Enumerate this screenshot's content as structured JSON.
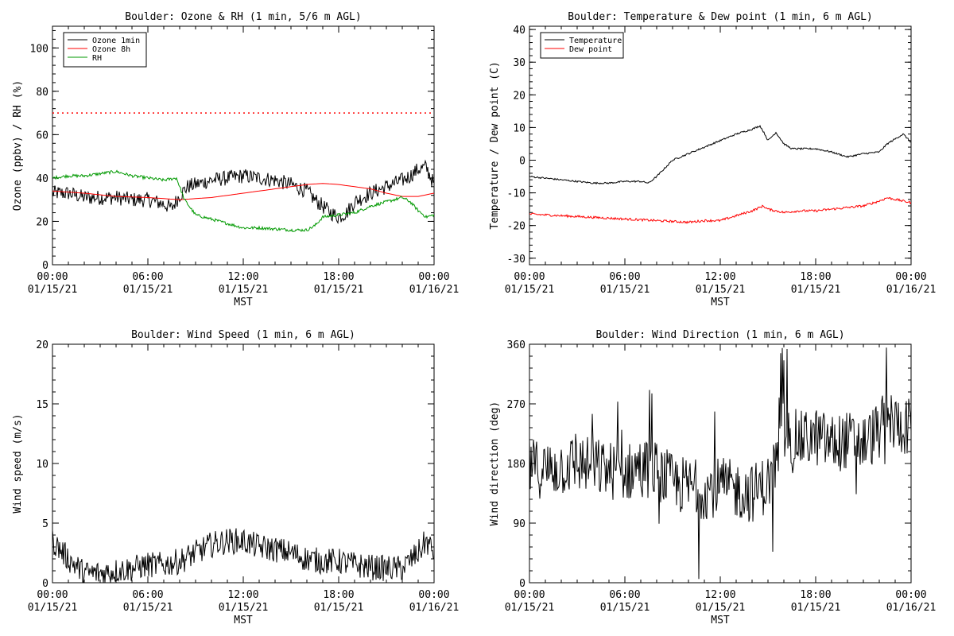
{
  "chart_data": [
    {
      "type": "line",
      "title": "Boulder: Ozone & RH (1 min, 5/6 m AGL)",
      "xlabel": "MST",
      "ylabel": "Ozone (ppbv) / RH (%)",
      "xlim_hours": [
        0,
        24
      ],
      "ylim": [
        0,
        110
      ],
      "yticks": [
        0,
        20,
        40,
        60,
        80,
        100
      ],
      "xticks": [
        {
          "h": 0,
          "time": "00:00",
          "date": "01/15/21"
        },
        {
          "h": 6,
          "time": "06:00",
          "date": "01/15/21"
        },
        {
          "h": 12,
          "time": "12:00",
          "date": "01/15/21"
        },
        {
          "h": 18,
          "time": "18:00",
          "date": "01/15/21"
        },
        {
          "h": 24,
          "time": "00:00",
          "date": "01/16/21"
        }
      ],
      "legend_position": "top-left",
      "reference_line": {
        "y": 70,
        "color": "#ff0000",
        "style": "dotted"
      },
      "series": [
        {
          "name": "Ozone 1min",
          "color": "#000000",
          "noise": 3.5,
          "x": [
            0,
            1,
            2,
            3,
            4,
            5,
            6,
            7,
            7.5,
            8,
            8.5,
            9,
            10,
            11,
            12,
            13,
            14,
            15,
            16,
            16.5,
            17,
            17.5,
            18,
            18.5,
            19,
            20,
            21,
            22,
            22.5,
            23,
            23.5,
            24
          ],
          "y": [
            33,
            33,
            31,
            31,
            31,
            30,
            30,
            28,
            26,
            32,
            36,
            37,
            39,
            40,
            41,
            40,
            39,
            37,
            34,
            30,
            27,
            24,
            22,
            24,
            29,
            33,
            36,
            39,
            41,
            44,
            45,
            37
          ]
        },
        {
          "name": "Ozone 8h",
          "color": "#ff0000",
          "noise": 0,
          "x": [
            0,
            2,
            4,
            6,
            8,
            10,
            12,
            14,
            16,
            17,
            18,
            19,
            20,
            21,
            22,
            23,
            24
          ],
          "y": [
            34,
            33,
            31.5,
            31,
            30,
            31,
            33,
            35,
            37,
            37.5,
            37,
            36,
            35,
            33,
            31.5,
            31.5,
            33
          ]
        },
        {
          "name": "RH",
          "color": "#009900",
          "noise": 0.7,
          "x": [
            0,
            1,
            2,
            3,
            4,
            5,
            6,
            7,
            7.8,
            8.3,
            9,
            10,
            11,
            12,
            13,
            14,
            15,
            16,
            16.5,
            17,
            18,
            19,
            20,
            21,
            22,
            22.5,
            23,
            23.5,
            24
          ],
          "y": [
            40,
            41,
            41,
            42,
            43,
            41,
            40,
            39,
            40,
            30,
            23,
            21,
            19,
            17,
            17,
            16.5,
            16,
            16,
            18,
            22,
            23,
            24,
            27,
            29,
            31,
            29,
            25,
            22,
            23
          ]
        }
      ]
    },
    {
      "type": "line",
      "title": "Boulder: Temperature & Dew point (1 min, 6 m AGL)",
      "xlabel": "MST",
      "ylabel": "Temperature / Dew point (C)",
      "xlim_hours": [
        0,
        24
      ],
      "ylim": [
        -32,
        41
      ],
      "yticks": [
        -30,
        -20,
        -10,
        0,
        10,
        20,
        30,
        40
      ],
      "xticks": [
        {
          "h": 0,
          "time": "00:00",
          "date": "01/15/21"
        },
        {
          "h": 6,
          "time": "06:00",
          "date": "01/15/21"
        },
        {
          "h": 12,
          "time": "12:00",
          "date": "01/15/21"
        },
        {
          "h": 18,
          "time": "18:00",
          "date": "01/15/21"
        },
        {
          "h": 24,
          "time": "00:00",
          "date": "01/16/21"
        }
      ],
      "legend_position": "top-left",
      "series": [
        {
          "name": "Temperature",
          "color": "#000000",
          "noise": 0.25,
          "x": [
            0,
            1,
            2,
            3,
            4,
            5,
            6,
            7,
            7.5,
            8,
            9,
            10,
            11,
            12,
            13,
            14,
            14.5,
            14.8,
            15,
            15.5,
            16,
            16.5,
            17,
            18,
            19,
            20,
            21,
            22,
            22.5,
            23,
            23.5,
            24
          ],
          "y": [
            -5,
            -5.5,
            -6,
            -6.5,
            -7,
            -7,
            -6.5,
            -6.5,
            -7,
            -5,
            0,
            2,
            4,
            6,
            8,
            9.5,
            10.5,
            8,
            6,
            8.5,
            5,
            3.5,
            3.5,
            3.5,
            2.5,
            1,
            2,
            2.5,
            5,
            6.5,
            8,
            5.5
          ]
        },
        {
          "name": "Dew point",
          "color": "#ff0000",
          "noise": 0.35,
          "x": [
            0,
            2,
            4,
            6,
            8,
            10,
            11,
            12,
            13,
            14,
            14.7,
            15,
            16,
            17,
            18,
            20,
            21,
            22,
            22.5,
            23,
            24
          ],
          "y": [
            -16.5,
            -17,
            -17.5,
            -18,
            -18.5,
            -19,
            -18.5,
            -18.5,
            -17,
            -15.5,
            -14,
            -15,
            -16,
            -15.5,
            -15.5,
            -14.5,
            -14,
            -12.5,
            -11.5,
            -12,
            -13
          ]
        }
      ]
    },
    {
      "type": "line",
      "title": "Boulder: Wind Speed (1 min, 6 m AGL)",
      "xlabel": "MST",
      "ylabel": "Wind speed (m/s)",
      "xlim_hours": [
        0,
        24
      ],
      "ylim": [
        0,
        20
      ],
      "yticks": [
        0,
        5,
        10,
        15,
        20
      ],
      "xticks": [
        {
          "h": 0,
          "time": "00:00",
          "date": "01/15/21"
        },
        {
          "h": 6,
          "time": "06:00",
          "date": "01/15/21"
        },
        {
          "h": 12,
          "time": "12:00",
          "date": "01/15/21"
        },
        {
          "h": 18,
          "time": "18:00",
          "date": "01/15/21"
        },
        {
          "h": 24,
          "time": "00:00",
          "date": "01/16/21"
        }
      ],
      "series": [
        {
          "name": "",
          "color": "#000000",
          "noise": 1.1,
          "x": [
            0,
            1,
            2,
            3,
            4,
            5,
            6,
            7,
            8,
            9,
            10,
            11,
            12,
            13,
            14,
            15,
            16,
            17,
            18,
            19,
            20,
            21,
            22,
            23,
            23.5,
            24
          ],
          "y": [
            3.5,
            2,
            0.8,
            0.8,
            1,
            1.2,
            1.5,
            1.5,
            1.8,
            2.5,
            3.2,
            3.5,
            3.5,
            3,
            2.8,
            2.5,
            2,
            1.8,
            1.8,
            1.5,
            1.3,
            1.2,
            1.2,
            2.5,
            3.5,
            2.5
          ]
        }
      ]
    },
    {
      "type": "line",
      "title": "Boulder: Wind Direction (1 min, 6 m AGL)",
      "xlabel": "MST",
      "ylabel": "Wind direction (deg)",
      "xlim_hours": [
        0,
        24
      ],
      "ylim": [
        0,
        360
      ],
      "yticks": [
        0,
        90,
        180,
        270,
        360
      ],
      "xticks": [
        {
          "h": 0,
          "time": "00:00",
          "date": "01/15/21"
        },
        {
          "h": 6,
          "time": "06:00",
          "date": "01/15/21"
        },
        {
          "h": 12,
          "time": "12:00",
          "date": "01/15/21"
        },
        {
          "h": 18,
          "time": "18:00",
          "date": "01/15/21"
        },
        {
          "h": 24,
          "time": "00:00",
          "date": "01/16/21"
        }
      ],
      "series": [
        {
          "name": "",
          "color": "#000000",
          "noise": 45,
          "x": [
            0,
            1,
            2,
            3,
            4,
            5,
            6,
            7,
            8,
            9,
            10,
            11,
            12,
            13,
            14,
            15,
            15.5,
            16,
            17,
            18,
            19,
            20,
            21,
            22,
            22.5,
            23,
            24
          ],
          "y": [
            175,
            170,
            175,
            180,
            175,
            170,
            165,
            175,
            170,
            150,
            145,
            140,
            145,
            140,
            135,
            150,
            180,
            225,
            215,
            220,
            210,
            215,
            210,
            230,
            250,
            240,
            235
          ]
        }
      ]
    }
  ]
}
